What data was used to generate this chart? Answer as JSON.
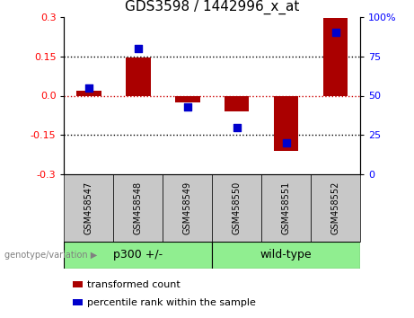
{
  "title": "GDS3598 / 1442996_x_at",
  "samples": [
    "GSM458547",
    "GSM458548",
    "GSM458549",
    "GSM458550",
    "GSM458551",
    "GSM458552"
  ],
  "bar_values": [
    0.02,
    0.145,
    -0.025,
    -0.06,
    -0.21,
    0.295
  ],
  "percentile_values": [
    55,
    80,
    43,
    30,
    20,
    90
  ],
  "ylim_left": [
    -0.3,
    0.3
  ],
  "ylim_right": [
    0,
    100
  ],
  "yticks_left": [
    -0.3,
    -0.15,
    0.0,
    0.15,
    0.3
  ],
  "yticks_right": [
    0,
    25,
    50,
    75,
    100
  ],
  "bar_color": "#AA0000",
  "dot_color": "#0000CC",
  "bar_width": 0.5,
  "groups": [
    {
      "label": "p300 +/-",
      "indices": [
        0,
        1,
        2
      ],
      "color": "#90EE90"
    },
    {
      "label": "wild-type",
      "indices": [
        3,
        4,
        5
      ],
      "color": "#90EE90"
    }
  ],
  "group_label": "genotype/variation",
  "legend_items": [
    {
      "label": "transformed count",
      "color": "#AA0000"
    },
    {
      "label": "percentile rank within the sample",
      "color": "#0000CC"
    }
  ],
  "xlabel_bg_color": "#C8C8C8",
  "zero_line_color": "#CC0000",
  "grid_line_color": "#000000",
  "title_fontsize": 11,
  "tick_fontsize": 8,
  "label_fontsize": 7,
  "legend_fontsize": 8,
  "group_fontsize": 9
}
